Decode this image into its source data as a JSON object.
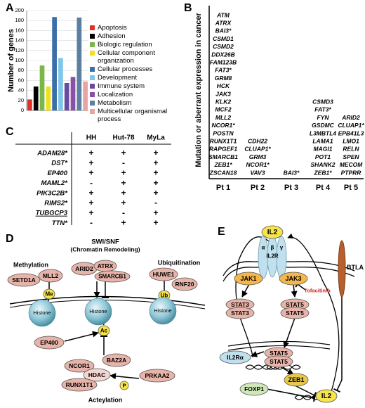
{
  "panel_labels": [
    "A",
    "B",
    "C",
    "D",
    "E"
  ],
  "chart_data": {
    "type": "bar",
    "ylabel": "Number of genes",
    "categories": [
      "Apoptosis",
      "Adhesion",
      "Biologic regulation",
      "Cellular component organization",
      "Cellular processes",
      "Development",
      "Immune system",
      "Localization",
      "Metabolism",
      "Multicellular organismal process"
    ],
    "values": [
      22,
      48,
      90,
      48,
      187,
      105,
      55,
      67,
      186,
      58
    ],
    "colors": [
      "#e0302a",
      "#000000",
      "#7ab648",
      "#f2e01f",
      "#3a6fa8",
      "#7fc6e8",
      "#6a4aa0",
      "#8a4fa6",
      "#5b7fa0",
      "#e8a3a3"
    ],
    "ylim": [
      0,
      200
    ],
    "yticks": [
      0,
      20,
      40,
      60,
      80,
      100,
      120,
      140,
      160,
      180,
      200
    ],
    "grid": true
  },
  "table_b": {
    "ylabel": "Mutation or aberrant expression in cancer",
    "columns": [
      {
        "name": "Pt 1",
        "genes": [
          "ATM",
          "ATRX",
          "BAI3*",
          "CSMD1",
          "CSMD2",
          "DDX26B",
          "FAM123B",
          "FAT3*",
          "GRM8",
          "HCK",
          "JAK3",
          "KLK2",
          "MCF2",
          "MLL2",
          "NCOR1*",
          "POSTN",
          "RUNX1T1",
          "RAPGEF1",
          "SMARCB1",
          "ZEB1*",
          "ZSCAN18"
        ]
      },
      {
        "name": "Pt 2",
        "genes": [
          "CDH22",
          "CLUAP1*",
          "GRM3",
          "NCOR1*",
          "VAV3"
        ]
      },
      {
        "name": "Pt 3",
        "genes": [
          "BAI3*"
        ]
      },
      {
        "name": "Pt 4",
        "genes": [
          "CSMD3",
          "FAT3*",
          "FYN",
          "GSDMC",
          "L3MBTL4",
          "LAMA1",
          "MAGI1",
          "POT1",
          "SHANK2",
          "ZEB1*"
        ]
      },
      {
        "name": "Pt 5",
        "genes": [
          "ARID2",
          "CLUAP1*",
          "EPB41L3",
          "LMO1",
          "RELN",
          "SPEN",
          "MECOM",
          "PTPRR"
        ]
      }
    ]
  },
  "table_c": {
    "header": [
      "HH",
      "Hut-78",
      "MyLa"
    ],
    "rows": [
      {
        "gene": "ADAM28*",
        "calls": [
          "+",
          "+",
          "+"
        ]
      },
      {
        "gene": "DST*",
        "calls": [
          "+",
          "-",
          "+"
        ]
      },
      {
        "gene": "EP400",
        "calls": [
          "+",
          "+",
          "+"
        ]
      },
      {
        "gene": "MAML2*",
        "calls": [
          "-",
          "+",
          "+"
        ]
      },
      {
        "gene": "PIK3C2B*",
        "calls": [
          "+",
          "+",
          "+"
        ]
      },
      {
        "gene": "RIMS2*",
        "calls": [
          "+",
          "+",
          "-"
        ]
      },
      {
        "gene": "TUBGCP3",
        "calls": [
          "+",
          "-",
          "+"
        ],
        "underline": true
      },
      {
        "gene": "TTN*",
        "calls": [
          "-",
          "+",
          "+"
        ]
      }
    ]
  },
  "diagram_d": {
    "titles": [
      "SWI/SNF",
      "(Chromatin Remodeling)",
      "Methylation",
      "Ubiquitination",
      "Acteylation"
    ],
    "nodes": [
      "SETD1A",
      "MLL2",
      "ARID2",
      "ATRX",
      "SMARCB1",
      "HUWE1",
      "RNF20",
      "Me",
      "Ub",
      "Histone",
      "Histone",
      "Histone",
      "Ac",
      "EP400",
      "NCOR1",
      "BAZ2A",
      "HDAC",
      "RUNX1T1",
      "P",
      "PRKAA2"
    ]
  },
  "diagram_e": {
    "nodes": [
      "IL2",
      "α",
      "β",
      "γ",
      "IL2R",
      "BTLA",
      "JAK1",
      "JAK3",
      "Tofacitinib",
      "STAT3",
      "STAT3",
      "STAT5",
      "STAT5",
      "IL2Rα",
      "STAT5",
      "STAT5",
      "ZEB1",
      "FOXP1",
      "IL2"
    ]
  }
}
